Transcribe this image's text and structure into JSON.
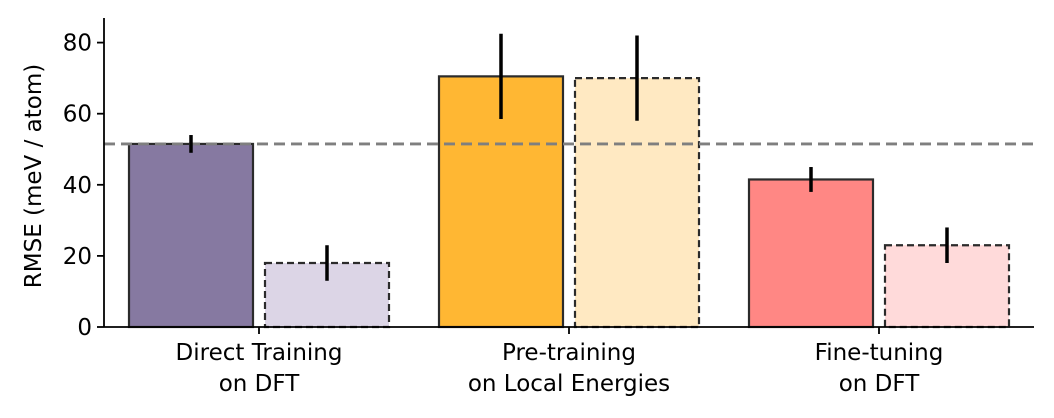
{
  "chart_data": {
    "type": "bar",
    "title": "",
    "xlabel": "",
    "ylabel": "RMSE (meV / atom)",
    "ylim": [
      0,
      87
    ],
    "yticks": [
      0,
      20,
      40,
      60,
      80
    ],
    "grid": false,
    "categories": [
      [
        "Direct Training",
        "on DFT"
      ],
      [
        "Pre-training",
        "on Local Energies"
      ],
      [
        "Fine-tuning",
        "on DFT"
      ]
    ],
    "series": [
      {
        "style": "solid",
        "values": [
          51.5,
          70.5,
          41.5
        ],
        "errors": [
          2.5,
          12,
          3.5
        ],
        "colors": [
          "#8679A1",
          "#FFB733",
          "#FF8784"
        ]
      },
      {
        "style": "dashed",
        "values": [
          18,
          70,
          23
        ],
        "errors": [
          5,
          12,
          5
        ],
        "colors": [
          "#DCD5E6",
          "#FFE9C2",
          "#FFDADA"
        ]
      }
    ],
    "reference_line": {
      "value": 51.5,
      "style": "dashed",
      "color": "#7f7f7f"
    },
    "bar_edge_color": "#2b2b2b",
    "error_bar_color": "#000000"
  }
}
